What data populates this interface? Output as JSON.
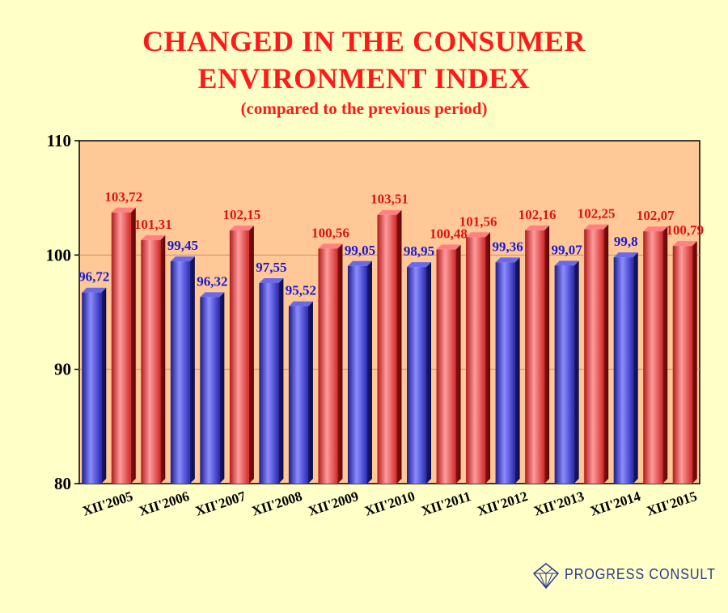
{
  "title_line1": "CHANGED IN THE CONSUMER",
  "title_line2": "ENVIRONMENT INDEX",
  "subtitle": "(compared to the previous period)",
  "logo_text": "PROGRESS CONSULT",
  "colors": {
    "background": "#ffffc8",
    "plot_area": "#ffc896",
    "title": "#ff1a1a",
    "blue_series": "#3c3cdc",
    "red_series": "#e84a4a",
    "blue_label": "#1a1ad2",
    "red_label": "#dc1414"
  },
  "chart_data": {
    "type": "bar",
    "categories": [
      "XII'2005",
      "XII'2006",
      "XII'2007",
      "XII'2008",
      "XII'2009",
      "XII'2010",
      "XII'2011",
      "XII'2012",
      "XII'2013",
      "XII'2014",
      "XII'2015"
    ],
    "bars": [
      {
        "value": 96.72,
        "label": "96,72",
        "color": "blue"
      },
      {
        "value": 103.72,
        "label": "103,72",
        "color": "red"
      },
      {
        "value": 101.31,
        "label": "101,31",
        "color": "red"
      },
      {
        "value": 99.45,
        "label": "99,45",
        "color": "blue"
      },
      {
        "value": 96.32,
        "label": "96,32",
        "color": "blue"
      },
      {
        "value": 102.15,
        "label": "102,15",
        "color": "red"
      },
      {
        "value": 97.55,
        "label": "97,55",
        "color": "blue"
      },
      {
        "value": 95.52,
        "label": "95,52",
        "color": "blue"
      },
      {
        "value": 100.56,
        "label": "100,56",
        "color": "red"
      },
      {
        "value": 99.05,
        "label": "99,05",
        "color": "blue"
      },
      {
        "value": 103.51,
        "label": "103,51",
        "color": "red"
      },
      {
        "value": 98.95,
        "label": "98,95",
        "color": "blue"
      },
      {
        "value": 100.48,
        "label": "100,48",
        "color": "red"
      },
      {
        "value": 101.56,
        "label": "101,56",
        "color": "red"
      },
      {
        "value": 99.36,
        "label": "99,36",
        "color": "blue"
      },
      {
        "value": 102.16,
        "label": "102,16",
        "color": "red"
      },
      {
        "value": 99.07,
        "label": "99,07",
        "color": "blue"
      },
      {
        "value": 102.25,
        "label": "102,25",
        "color": "red"
      },
      {
        "value": 99.8,
        "label": "99,8",
        "color": "blue"
      },
      {
        "value": 102.07,
        "label": "102,07",
        "color": "red"
      },
      {
        "value": 100.79,
        "label": "100,79",
        "color": "red"
      }
    ],
    "ylim": [
      80,
      110
    ],
    "yticks": [
      "80",
      "90",
      "100",
      "110"
    ],
    "grid": true,
    "xlabel": "",
    "ylabel": ""
  }
}
